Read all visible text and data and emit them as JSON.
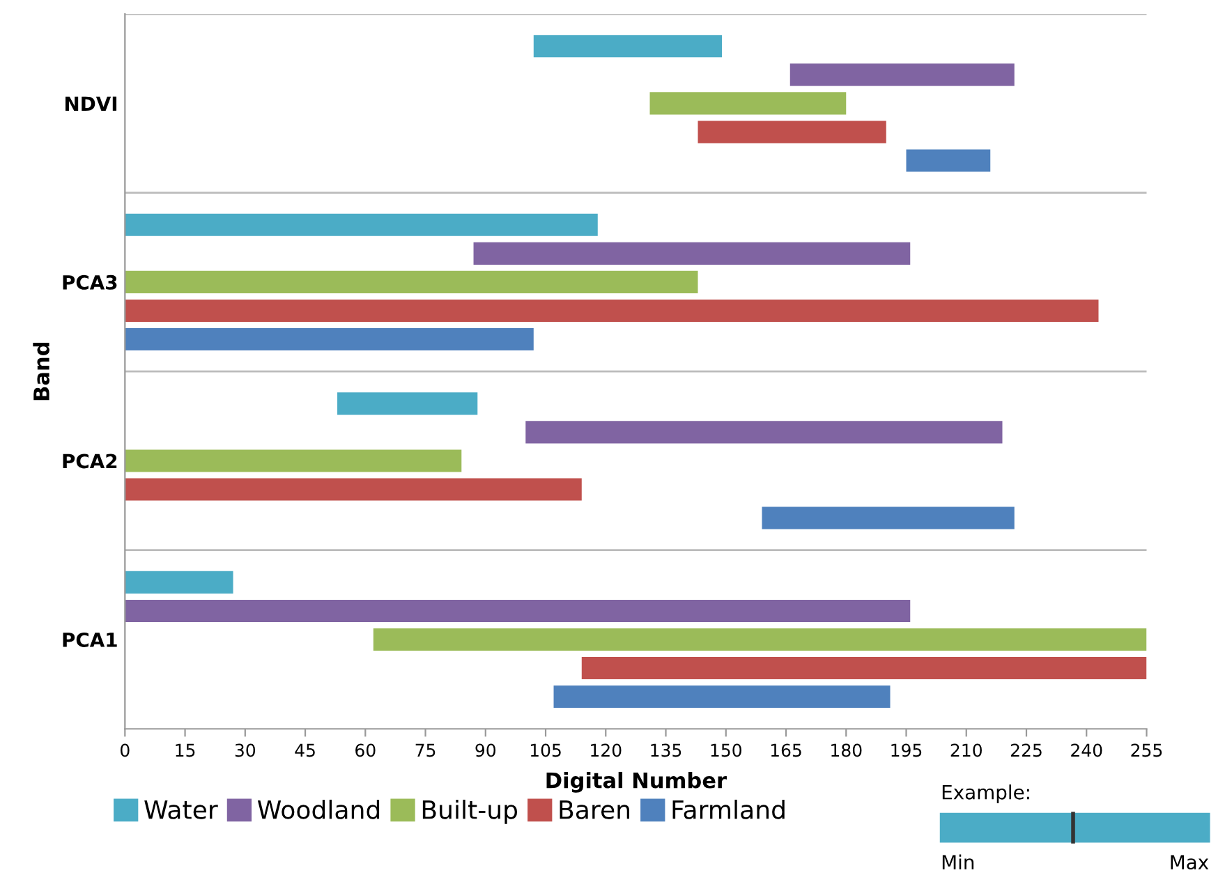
{
  "chart_data": {
    "type": "bar",
    "orientation": "horizontal",
    "xlabel": "Digital Number",
    "ylabel": "Band",
    "categories": [
      "NDVI",
      "PCA3",
      "PCA2",
      "PCA1"
    ],
    "series": [
      {
        "name": "Water",
        "color": "#4bacc6",
        "base": [
          102,
          0,
          53,
          0
        ],
        "values": [
          47,
          118,
          35,
          27
        ]
      },
      {
        "name": "Woodland",
        "color": "#8064a2",
        "base": [
          166,
          87,
          100,
          0
        ],
        "values": [
          56,
          109,
          119,
          196
        ]
      },
      {
        "name": "Built-up",
        "color": "#9bbb59",
        "base": [
          131,
          0,
          0,
          62
        ],
        "values": [
          49,
          143,
          84,
          193
        ]
      },
      {
        "name": "Baren",
        "color": "#c0504d",
        "base": [
          143,
          0,
          0,
          114
        ],
        "values": [
          47,
          243,
          114,
          141
        ]
      },
      {
        "name": "Farmland",
        "color": "#4f81bd",
        "base": [
          195,
          0,
          159,
          107
        ],
        "values": [
          21,
          102,
          63,
          84
        ]
      }
    ],
    "xlim": [
      0,
      255
    ],
    "xticks": [
      0,
      15,
      30,
      45,
      60,
      75,
      90,
      105,
      120,
      135,
      150,
      165,
      180,
      195,
      210,
      225,
      240,
      255
    ],
    "grid": "y",
    "legend": "bottom",
    "annotations": [
      "Example:",
      "Min",
      "Max"
    ]
  }
}
